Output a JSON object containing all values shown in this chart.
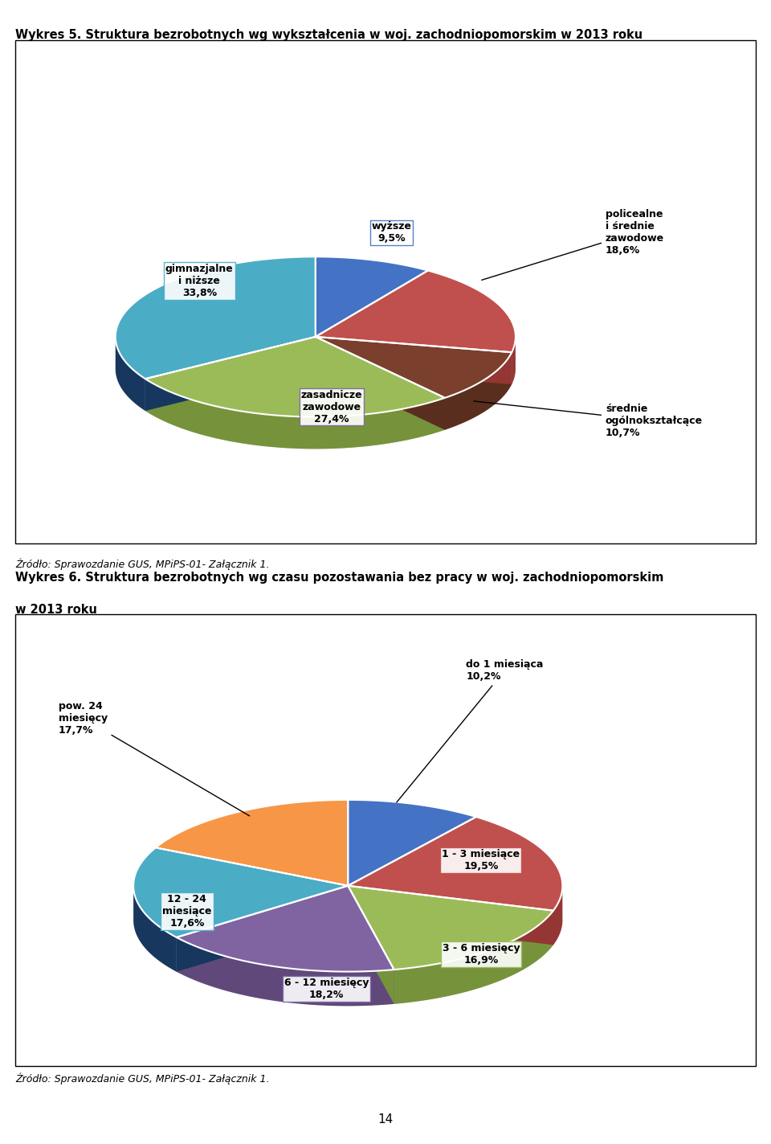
{
  "title1": "Wykres 5. Struktura bezrobotnych wg wykształcenia w woj. zachodniopomorskim w 2013 roku",
  "title2_line1": "Wykres 6. Struktura bezrobotnych wg czasu pozostawania bez pracy w woj. zachodniopomorskim",
  "title2_line2": "w 2013 roku",
  "source_text": "Źródło: Sprawozdanie GUS, MPiPS-01- Załącznik 1.",
  "page_number": "14",
  "chart1": {
    "values": [
      9.5,
      18.6,
      10.7,
      27.4,
      33.8
    ],
    "colors": [
      "#4472C4",
      "#C0504D",
      "#7B3F2E",
      "#9BBB59",
      "#4BACC6"
    ],
    "dark_colors": [
      "#2F5496",
      "#943634",
      "#5A2E1E",
      "#76933C",
      "#17375E"
    ],
    "startangle": 90
  },
  "chart2": {
    "values": [
      10.2,
      19.5,
      16.9,
      18.2,
      17.6,
      17.7
    ],
    "colors": [
      "#4472C4",
      "#C0504D",
      "#9BBB59",
      "#8064A2",
      "#4BACC6",
      "#F79646"
    ],
    "dark_colors": [
      "#2F5496",
      "#943634",
      "#76933C",
      "#60497A",
      "#17375E",
      "#E36C09"
    ],
    "startangle": 90
  },
  "bg_color": "#FFFFFF"
}
